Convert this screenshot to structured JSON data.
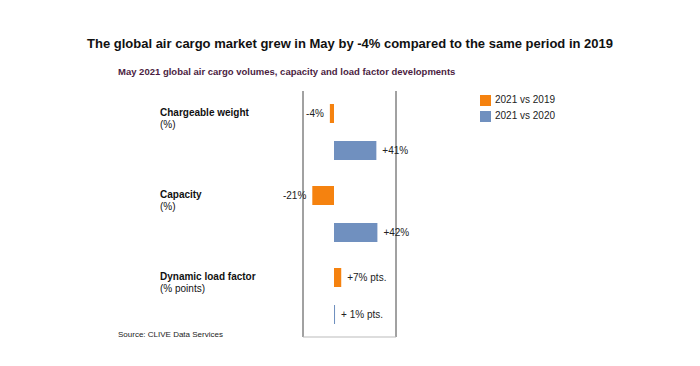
{
  "chart_data": {
    "type": "bar",
    "orientation": "horizontal",
    "title": "The global air cargo market grew in May by -4% compared to the same period in 2019",
    "subtitle": "May 2021 global air cargo volumes, capacity and load factor developments",
    "source": "Source: CLIVE Data Services",
    "categories": [
      "Chargeable weight (%)",
      "Capacity (%)",
      "Dynamic load factor (% points)"
    ],
    "series": [
      {
        "name": "2021 vs 2019",
        "color": "#f5820f",
        "values": [
          -4,
          -21,
          7
        ],
        "value_labels": [
          "-4%",
          "-21%",
          "+7% pts."
        ]
      },
      {
        "name": "2021 vs 2020",
        "color": "#7090bf",
        "values": [
          41,
          42,
          1
        ],
        "value_labels": [
          "+41%",
          "+42%",
          "+ 1% pts."
        ]
      }
    ],
    "xlim": [
      -30,
      60
    ],
    "xticks": [
      0
    ],
    "grid": true,
    "tick_labels": false,
    "data_labels": true,
    "legend": "upper right"
  }
}
